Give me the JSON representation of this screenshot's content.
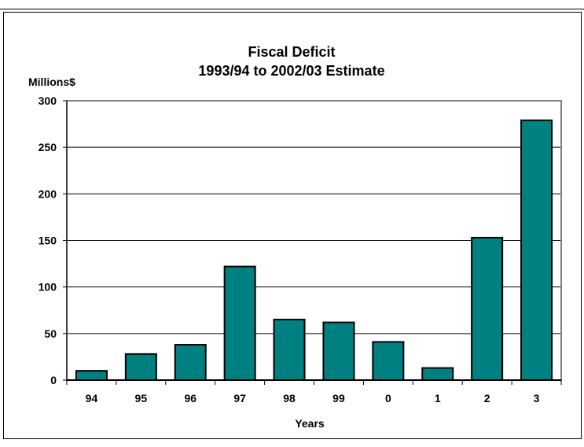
{
  "chart_data": {
    "type": "bar",
    "title": "Fiscal Deficit",
    "subtitle": "1993/94 to 2002/03 Estimate",
    "ylabel": "Millions$",
    "xlabel": "Years",
    "categories": [
      "94",
      "95",
      "96",
      "97",
      "98",
      "99",
      "0",
      "1",
      "2",
      "3"
    ],
    "values": [
      10,
      28,
      38,
      122,
      65,
      62,
      41,
      13,
      153,
      279
    ],
    "ylim": [
      0,
      300
    ],
    "yticks": [
      "0",
      "50",
      "100",
      "150",
      "200",
      "250",
      "300"
    ],
    "grid": true,
    "legend": "none",
    "bar_color": "#008080"
  }
}
